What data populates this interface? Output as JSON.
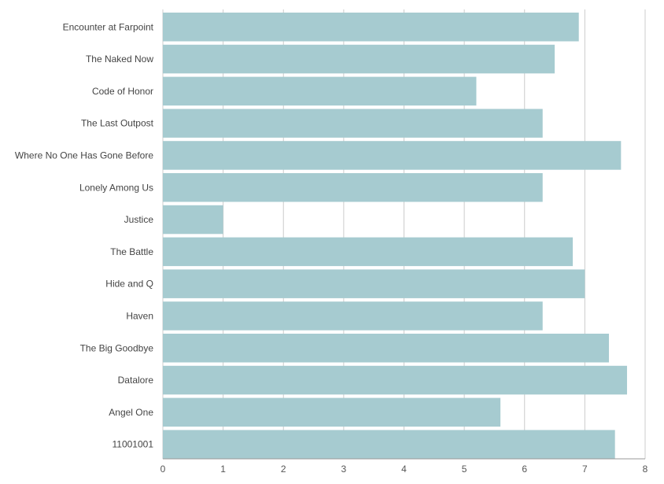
{
  "chart_data": {
    "type": "bar",
    "orientation": "horizontal",
    "title": "",
    "xlabel": "",
    "ylabel": "",
    "categories": [
      "Encounter at Farpoint",
      "The Naked Now",
      "Code of Honor",
      "The Last Outpost",
      "Where No One Has Gone Before",
      "Lonely Among Us",
      "Justice",
      "The Battle",
      "Hide and Q",
      "Haven",
      "The Big Goodbye",
      "Datalore",
      "Angel One",
      "11001001"
    ],
    "values": [
      6.9,
      6.5,
      5.2,
      6.3,
      7.6,
      6.3,
      1.0,
      6.8,
      7.0,
      6.3,
      7.4,
      7.7,
      5.6,
      7.5
    ],
    "xlim": [
      0,
      8
    ],
    "xticks": [
      "0",
      "1",
      "2",
      "3",
      "4",
      "5",
      "6",
      "7",
      "8"
    ],
    "grid": true,
    "bar_color": "#a6cbd0",
    "grid_color": "#cccccc"
  }
}
